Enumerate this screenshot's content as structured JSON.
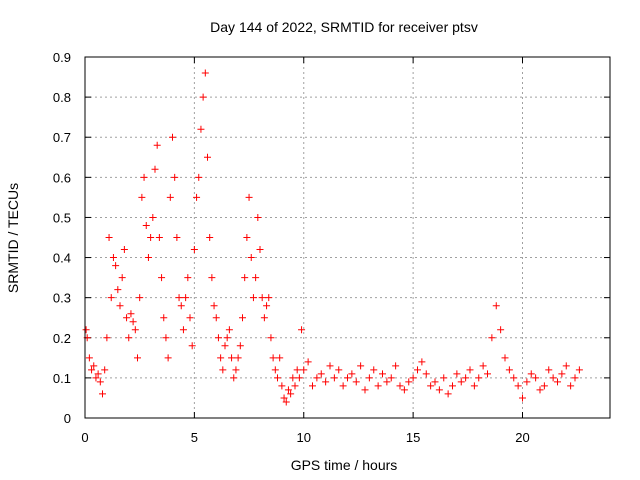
{
  "chart_data": {
    "type": "scatter",
    "title": "Day 144 of 2022, SRMTID for receiver ptsv",
    "xlabel": "GPS time / hours",
    "ylabel": "SRMTID / TECUs",
    "xlim": [
      0,
      24
    ],
    "ylim": [
      0,
      0.9
    ],
    "xticks": [
      0,
      5,
      10,
      15,
      20
    ],
    "xtick_labels": [
      "0",
      "5",
      "10",
      "15",
      "20"
    ],
    "yticks": [
      0,
      0.1,
      0.2,
      0.3,
      0.4,
      0.5,
      0.6,
      0.7,
      0.8,
      0.9
    ],
    "ytick_labels": [
      "0",
      "0.1",
      "0.2",
      "0.3",
      "0.4",
      "0.5",
      "0.6",
      "0.7",
      "0.8",
      "0.9"
    ],
    "grid": true,
    "marker": "+",
    "series": [
      {
        "name": "SRMTID",
        "color": "#ff0000",
        "x": [
          0.05,
          0.1,
          0.2,
          0.3,
          0.4,
          0.5,
          0.6,
          0.7,
          0.8,
          0.9,
          1.0,
          1.1,
          1.2,
          1.3,
          1.4,
          1.5,
          1.6,
          1.7,
          1.8,
          1.9,
          2.0,
          2.1,
          2.2,
          2.3,
          2.4,
          2.5,
          2.6,
          2.7,
          2.8,
          2.9,
          3.0,
          3.1,
          3.2,
          3.3,
          3.4,
          3.5,
          3.6,
          3.7,
          3.8,
          3.9,
          4.0,
          4.1,
          4.2,
          4.3,
          4.4,
          4.5,
          4.6,
          4.7,
          4.8,
          4.9,
          5.0,
          5.1,
          5.2,
          5.3,
          5.4,
          5.5,
          5.6,
          5.7,
          5.8,
          5.9,
          6.0,
          6.1,
          6.2,
          6.3,
          6.4,
          6.5,
          6.6,
          6.7,
          6.8,
          6.9,
          7.0,
          7.1,
          7.2,
          7.3,
          7.4,
          7.5,
          7.6,
          7.7,
          7.8,
          7.9,
          8.0,
          8.1,
          8.2,
          8.3,
          8.4,
          8.5,
          8.6,
          8.7,
          8.8,
          8.9,
          9.0,
          9.1,
          9.2,
          9.3,
          9.4,
          9.5,
          9.6,
          9.7,
          9.8,
          9.9,
          10.0,
          10.2,
          10.4,
          10.6,
          10.8,
          11.0,
          11.2,
          11.4,
          11.6,
          11.8,
          12.0,
          12.2,
          12.4,
          12.6,
          12.8,
          13.0,
          13.2,
          13.4,
          13.6,
          13.8,
          14.0,
          14.2,
          14.4,
          14.6,
          14.8,
          15.0,
          15.2,
          15.4,
          15.6,
          15.8,
          16.0,
          16.2,
          16.4,
          16.6,
          16.8,
          17.0,
          17.2,
          17.4,
          17.6,
          17.8,
          18.0,
          18.2,
          18.4,
          18.6,
          18.8,
          19.0,
          19.2,
          19.4,
          19.6,
          19.8,
          20.0,
          20.2,
          20.4,
          20.6,
          20.8,
          21.0,
          21.2,
          21.4,
          21.6,
          21.8,
          22.0,
          22.2,
          22.4,
          22.6
        ],
        "y": [
          0.22,
          0.2,
          0.15,
          0.12,
          0.13,
          0.1,
          0.11,
          0.09,
          0.06,
          0.12,
          0.2,
          0.45,
          0.3,
          0.4,
          0.38,
          0.32,
          0.28,
          0.35,
          0.42,
          0.25,
          0.2,
          0.26,
          0.24,
          0.22,
          0.15,
          0.3,
          0.55,
          0.6,
          0.48,
          0.4,
          0.45,
          0.5,
          0.62,
          0.68,
          0.45,
          0.35,
          0.25,
          0.2,
          0.15,
          0.55,
          0.7,
          0.6,
          0.45,
          0.3,
          0.28,
          0.22,
          0.3,
          0.35,
          0.25,
          0.18,
          0.42,
          0.55,
          0.6,
          0.72,
          0.8,
          0.86,
          0.65,
          0.45,
          0.35,
          0.28,
          0.25,
          0.2,
          0.15,
          0.12,
          0.18,
          0.2,
          0.22,
          0.15,
          0.1,
          0.12,
          0.15,
          0.18,
          0.25,
          0.35,
          0.45,
          0.55,
          0.4,
          0.3,
          0.35,
          0.5,
          0.42,
          0.3,
          0.25,
          0.28,
          0.3,
          0.2,
          0.15,
          0.12,
          0.1,
          0.15,
          0.08,
          0.05,
          0.04,
          0.07,
          0.06,
          0.1,
          0.08,
          0.12,
          0.1,
          0.22,
          0.12,
          0.14,
          0.08,
          0.1,
          0.11,
          0.09,
          0.13,
          0.1,
          0.12,
          0.08,
          0.1,
          0.11,
          0.09,
          0.13,
          0.07,
          0.1,
          0.12,
          0.08,
          0.11,
          0.09,
          0.1,
          0.13,
          0.08,
          0.07,
          0.09,
          0.1,
          0.12,
          0.14,
          0.11,
          0.08,
          0.09,
          0.07,
          0.1,
          0.06,
          0.08,
          0.11,
          0.09,
          0.1,
          0.12,
          0.08,
          0.1,
          0.13,
          0.11,
          0.2,
          0.28,
          0.22,
          0.15,
          0.12,
          0.1,
          0.08,
          0.05,
          0.09,
          0.11,
          0.1,
          0.07,
          0.08,
          0.12,
          0.1,
          0.09,
          0.11,
          0.13,
          0.08,
          0.1,
          0.12
        ]
      }
    ]
  }
}
